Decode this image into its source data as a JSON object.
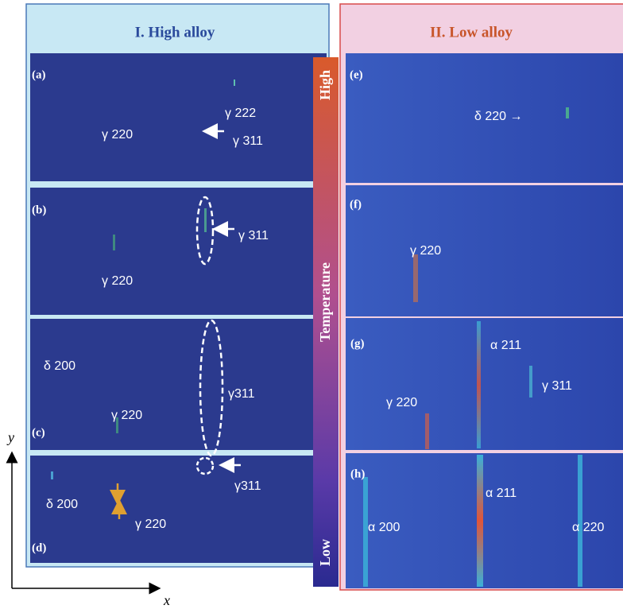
{
  "panels": [
    {
      "title": "I. High alloy",
      "images": [
        {
          "label": "(a)",
          "annotations": [
            "γ 222",
            "γ 220",
            "γ 311"
          ]
        },
        {
          "label": "(b)",
          "annotations": [
            "γ 311",
            "γ 220"
          ]
        },
        {
          "label": "(c)",
          "annotations": [
            "δ 200",
            "γ311",
            "γ 220"
          ]
        },
        {
          "label": "(d)",
          "annotations": [
            "γ311",
            "δ 200",
            "γ 220"
          ]
        }
      ]
    },
    {
      "title": "II. Low alloy",
      "images": [
        {
          "label": "(e)",
          "annotations": [
            "δ 220 →"
          ]
        },
        {
          "label": "(f)",
          "annotations": [
            "γ 220"
          ]
        },
        {
          "label": "(g)",
          "annotations": [
            "α 211",
            "γ 311",
            "γ 220"
          ]
        },
        {
          "label": "(h)",
          "annotations": [
            "α 211",
            "α 200",
            "α 220"
          ]
        }
      ]
    }
  ],
  "temperature_bar": {
    "high": "High",
    "label": "Temperature",
    "low": "Low"
  },
  "axes": {
    "y": "y",
    "x": "x"
  }
}
